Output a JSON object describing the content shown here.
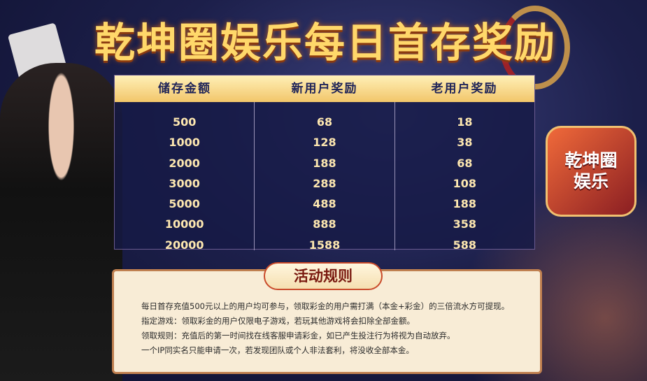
{
  "title": "乾坤圈娱乐每日首存奖励",
  "table": {
    "headers": [
      "储存金额",
      "新用户奖励",
      "老用户奖励"
    ],
    "columns": [
      [
        "500",
        "1000",
        "2000",
        "3000",
        "5000",
        "10000",
        "20000"
      ],
      [
        "68",
        "128",
        "188",
        "288",
        "488",
        "888",
        "1588"
      ],
      [
        "18",
        "38",
        "68",
        "108",
        "188",
        "358",
        "588"
      ]
    ]
  },
  "logo": {
    "line1": "乾坤圈",
    "line2": "娱乐"
  },
  "rules": {
    "title": "活动规则",
    "lines": [
      "每日首存充值500元以上的用户均可参与，领取彩金的用户需打满（本金+彩金）的三倍流水方可提现。",
      "指定游戏：领取彩金的用户仅限电子游戏，若玩其他游戏将会扣除全部金额。",
      "领取规则：充值后的第一时间找在线客服申请彩金，如已产生投注行为将视为自动放弃。",
      "一个IP同实名只能申请一次，若发现团队或个人非法套利，将没收全部本金。"
    ]
  }
}
